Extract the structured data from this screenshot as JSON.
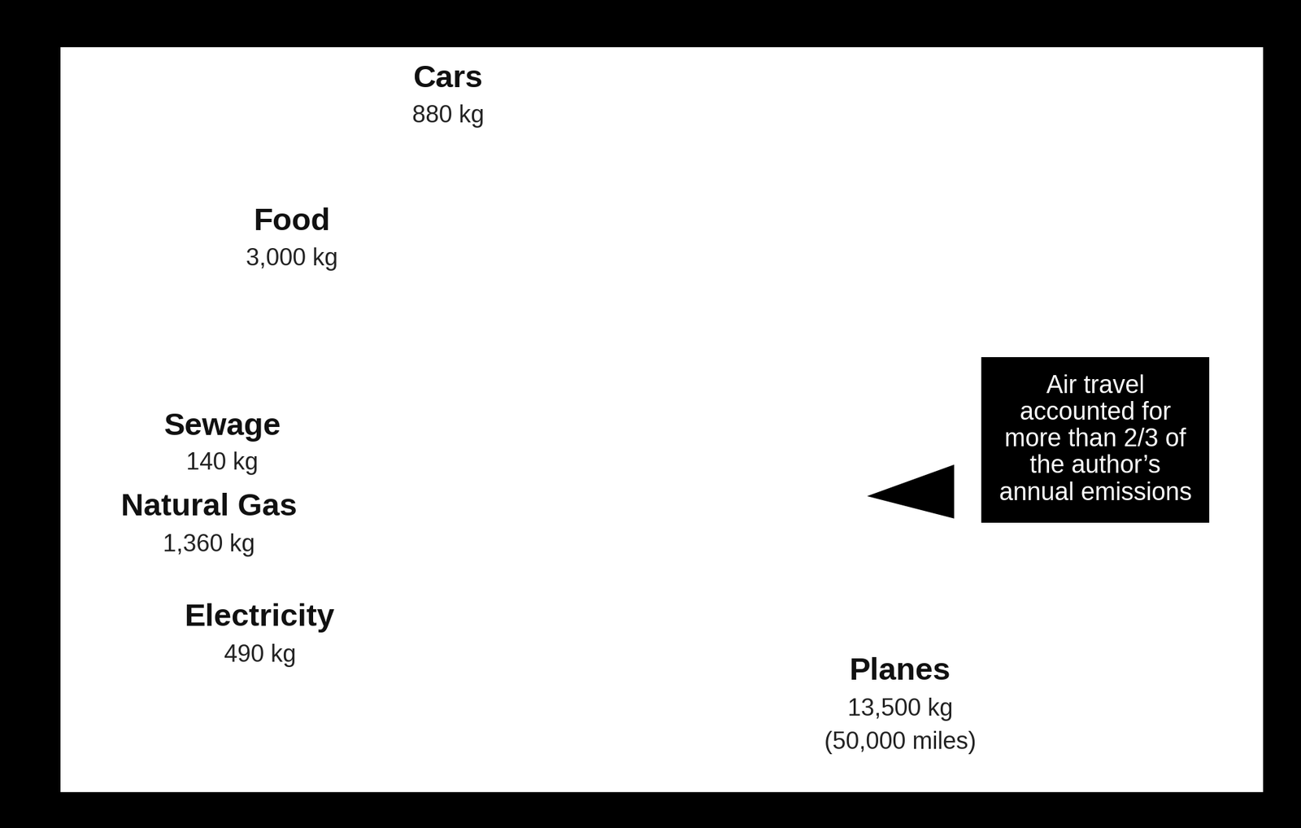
{
  "chart_data": {
    "type": "pie",
    "categories": [
      "Cars",
      "Food",
      "Sewage",
      "Natural Gas",
      "Electricity",
      "Planes"
    ],
    "values": [
      880,
      3000,
      140,
      1360,
      490,
      13500
    ],
    "value_labels": [
      "880 kg",
      "3,000 kg",
      "140 kg",
      "1,360 kg",
      "490 kg",
      "13,500 kg"
    ],
    "colors": [
      "#c5e2c4",
      "#9fcbdb",
      "#5aa9b6",
      "#c9e7ef",
      "#79b9c9",
      "#1f4170"
    ],
    "data_labels": true,
    "annotations": [
      {
        "category": "Planes",
        "text": "(50,000 miles)"
      },
      {
        "text": "Air travel accounted for more than 2/3 of the author’s annual emissions"
      }
    ]
  }
}
